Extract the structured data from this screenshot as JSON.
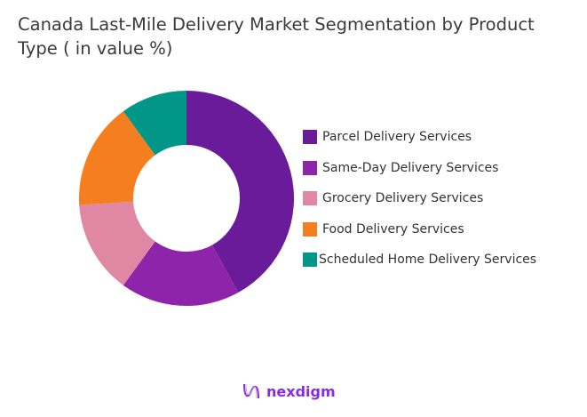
{
  "chart_data": {
    "type": "pie",
    "variant": "donut",
    "title": "Canada Last-Mile Delivery Market Segmentation by Product Type ( in value %)",
    "categories": [
      "Parcel Delivery Services",
      "Same-Day Delivery Services",
      "Grocery Delivery Services",
      "Food Delivery Services",
      "Scheduled Home Delivery Services"
    ],
    "values": [
      42,
      18,
      14,
      16,
      10
    ],
    "colors": [
      "#6a1b9a",
      "#8e24aa",
      "#e088a3",
      "#f57f20",
      "#009688"
    ],
    "legend_position": "right"
  },
  "brand": {
    "logo_text": "nexdigm"
  }
}
